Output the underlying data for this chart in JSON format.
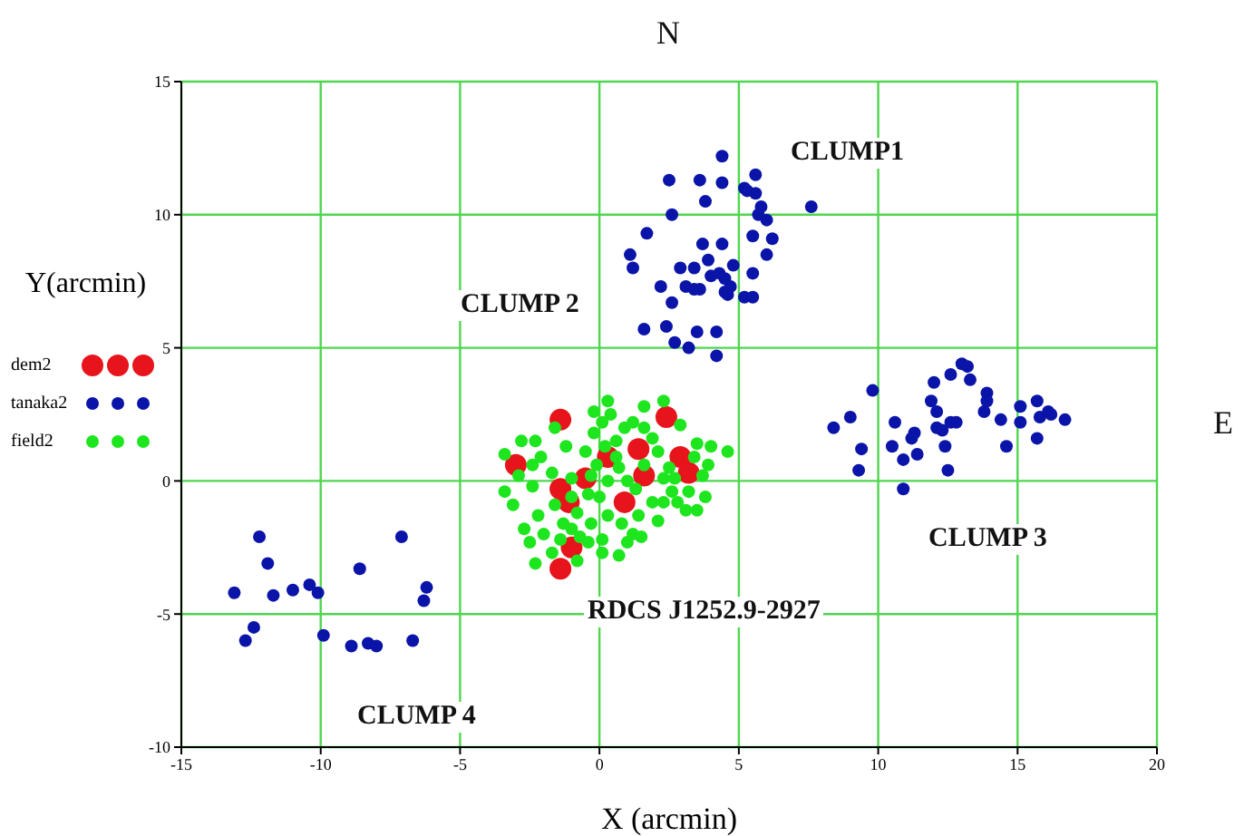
{
  "chart_data": {
    "type": "scatter",
    "xlabel": "X (arcmin)",
    "ylabel": "Y(arcmin)",
    "xlim": [
      -15,
      20
    ],
    "ylim": [
      -10,
      15
    ],
    "xticks": [
      -15,
      -10,
      -5,
      0,
      5,
      10,
      15,
      20
    ],
    "yticks": [
      -10,
      -5,
      0,
      5,
      10,
      15
    ],
    "grid": true,
    "legend": "left",
    "marker": "circle",
    "series": [
      {
        "name": "dem2",
        "color": "#e8141b",
        "x": [
          -1.4,
          2.4,
          -3.0,
          -1.4,
          -1.1,
          -0.5,
          1.4,
          0.9,
          3.2,
          2.9,
          -1.0,
          -1.4,
          1.6,
          0.3
        ],
        "values": [
          2.3,
          2.4,
          0.6,
          -0.3,
          -0.8,
          0.1,
          1.2,
          -0.8,
          0.3,
          0.9,
          -2.5,
          -3.3,
          0.2,
          0.9
        ]
      },
      {
        "name": "tanaka2",
        "color": "#0a14a8",
        "x": [
          4.4,
          2.5,
          3.6,
          4.4,
          5.2,
          5.6,
          5.3,
          5.6,
          3.8,
          5.8,
          5.7,
          2.6,
          6.0,
          7.6,
          1.7,
          6.2,
          3.7,
          4.4,
          5.5,
          1.1,
          6.0,
          3.9,
          1.2,
          2.9,
          3.4,
          4.8,
          4.0,
          4.3,
          5.5,
          4.5,
          2.2,
          3.1,
          3.4,
          3.6,
          4.5,
          4.7,
          4.6,
          5.2,
          5.5,
          2.6,
          1.6,
          2.4,
          3.5,
          4.2,
          2.7,
          3.2,
          4.2,
          8.4,
          9.0,
          9.8,
          9.4,
          9.3,
          10.6,
          10.5,
          10.9,
          11.3,
          11.2,
          11.4,
          10.9,
          12.0,
          11.9,
          12.1,
          12.1,
          12.3,
          12.6,
          12.8,
          12.4,
          12.5,
          12.6,
          13.2,
          13.0,
          13.3,
          13.9,
          13.9,
          13.8,
          14.4,
          14.6,
          15.1,
          15.1,
          15.7,
          15.8,
          16.1,
          16.2,
          15.7,
          16.7,
          -12.2,
          -11.9,
          -13.1,
          -11.7,
          -11.0,
          -10.4,
          -10.1,
          -12.4,
          -12.7,
          -9.9,
          -8.9,
          -8.3,
          -8.0,
          -8.6,
          -7.1,
          -6.2,
          -6.3,
          -6.7
        ],
        "values": [
          12.2,
          11.3,
          11.3,
          11.2,
          11.0,
          11.5,
          10.9,
          10.8,
          10.5,
          10.3,
          10.0,
          10.0,
          9.8,
          10.3,
          9.3,
          9.1,
          8.9,
          8.9,
          9.2,
          8.5,
          8.5,
          8.3,
          8.0,
          8.0,
          8.0,
          8.1,
          7.7,
          7.8,
          7.8,
          7.6,
          7.3,
          7.3,
          7.2,
          7.2,
          7.1,
          7.3,
          7.0,
          6.9,
          6.9,
          6.7,
          5.7,
          5.8,
          5.6,
          5.6,
          5.2,
          5.0,
          4.7,
          2.0,
          2.4,
          3.4,
          1.2,
          0.4,
          2.2,
          1.3,
          0.8,
          1.8,
          1.6,
          1.0,
          -0.3,
          3.7,
          3.0,
          2.6,
          2.0,
          1.9,
          2.2,
          2.2,
          1.3,
          0.4,
          4.0,
          4.3,
          4.4,
          3.8,
          3.3,
          3.0,
          2.6,
          2.3,
          1.3,
          2.8,
          2.2,
          3.0,
          2.4,
          2.6,
          2.5,
          1.6,
          2.3,
          -2.1,
          -3.1,
          -4.2,
          -4.3,
          -4.1,
          -3.9,
          -4.2,
          -5.5,
          -6.0,
          -5.8,
          -6.2,
          -6.1,
          -6.2,
          -3.3,
          -2.1,
          -4.0,
          -4.5,
          -6.0
        ]
      },
      {
        "name": "field2",
        "color": "#1ee61e",
        "x": [
          -0.2,
          0.4,
          1.6,
          2.3,
          2.9,
          3.5,
          4.0,
          4.6,
          -3.4,
          -2.3,
          -2.9,
          -3.4,
          -3.1,
          -2.4,
          -2.1,
          -1.7,
          -1.6,
          -1.3,
          -1.0,
          -0.8,
          -0.2,
          0.1,
          0.2,
          0.6,
          0.9,
          1.2,
          1.6,
          1.9,
          2.1,
          2.5,
          2.6,
          2.8,
          3.5,
          3.8,
          3.7,
          3.9,
          3.4,
          2.3,
          1.9,
          1.4,
          1.2,
          1.0,
          0.7,
          0.1,
          -0.3,
          -0.4,
          -0.8,
          -1.7,
          -2.3,
          -2.5,
          -2.7,
          -2.2,
          -1.0,
          -0.1,
          0.3,
          0.7,
          1.0,
          0.0,
          0.3,
          0.8,
          -0.5,
          -1.2,
          -1.6,
          -2.8,
          -0.4,
          0.1,
          2.3,
          3.1,
          3.2,
          1.6,
          1.3,
          -0.7,
          -1.4,
          -2.0,
          -2.4,
          0.3,
          0.6,
          -0.3,
          -1.0,
          1.5,
          2.1,
          2.7
        ],
        "values": [
          2.6,
          2.5,
          2.8,
          3.0,
          2.1,
          1.4,
          1.3,
          1.1,
          1.0,
          1.5,
          0.2,
          -0.4,
          -0.9,
          -0.2,
          0.9,
          0.3,
          -0.9,
          -1.6,
          -1.8,
          -1.2,
          1.8,
          2.2,
          1.3,
          1.5,
          2.0,
          2.2,
          2.0,
          1.6,
          1.1,
          0.5,
          -0.4,
          -0.8,
          -1.1,
          -0.6,
          0.2,
          0.6,
          0.9,
          0.1,
          -0.8,
          -1.3,
          -2.0,
          -2.3,
          -2.8,
          -2.2,
          -1.6,
          -2.3,
          -3.0,
          -2.7,
          -3.1,
          -2.3,
          -1.8,
          -1.3,
          0.1,
          0.6,
          0.0,
          0.5,
          0.0,
          -0.6,
          -1.3,
          -1.6,
          1.1,
          1.3,
          2.0,
          1.5,
          -0.5,
          -2.7,
          -0.8,
          -1.1,
          -0.4,
          0.6,
          -0.3,
          -2.1,
          -2.2,
          -2.0,
          0.6,
          3.0,
          0.9,
          0.2,
          -0.6,
          -2.1,
          -1.5,
          0.1
        ]
      }
    ],
    "annotations": [
      "N",
      "E",
      "CLUMP1",
      "CLUMP 2",
      "CLUMP 3",
      "CLUMP 4",
      "RDCS J1252.9-2927"
    ]
  }
}
